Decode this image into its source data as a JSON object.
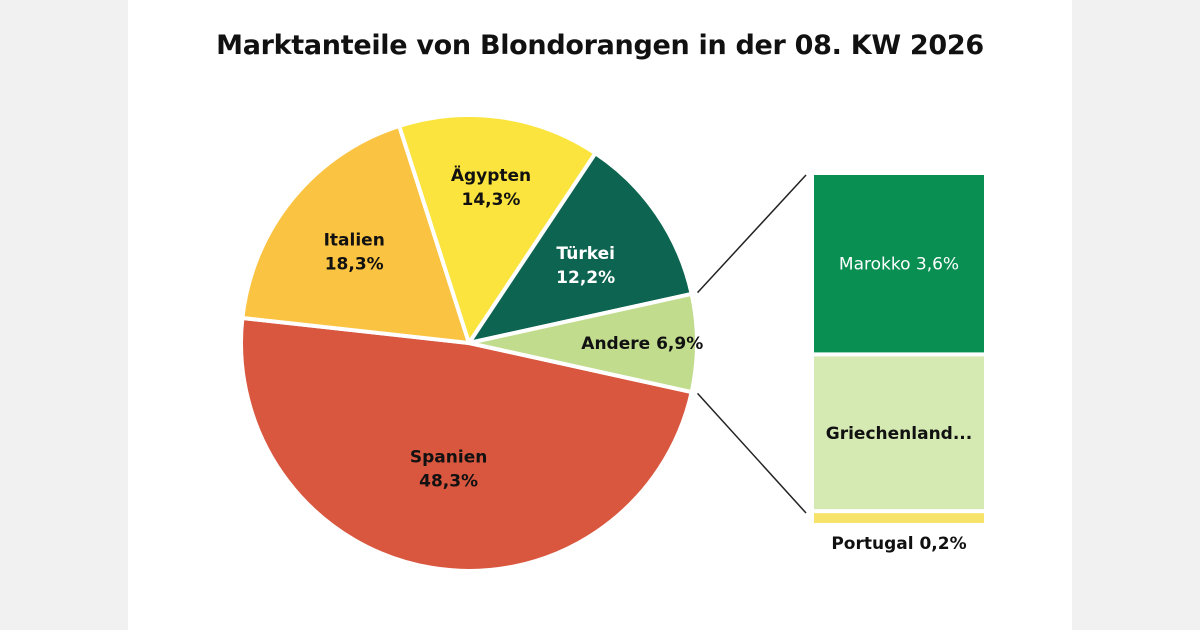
{
  "chart_data": {
    "type": "pie",
    "title": "Marktanteile von Blondorangen in der 08. KW 2026",
    "slices": [
      {
        "name": "Spanien",
        "value": 48.3,
        "value_label": "48,3%",
        "color": "#d9573f",
        "text_color": "#111111"
      },
      {
        "name": "Italien",
        "value": 18.3,
        "value_label": "18,3%",
        "color": "#fbc342",
        "text_color": "#111111"
      },
      {
        "name": "Ägypten",
        "value": 14.3,
        "value_label": "14,3%",
        "color": "#fbe43d",
        "text_color": "#111111"
      },
      {
        "name": "Türkei",
        "value": 12.2,
        "value_label": "12,2%",
        "color": "#0d6450",
        "text_color": "#ffffff"
      },
      {
        "name": "Andere",
        "value": 6.9,
        "value_label": "6,9%",
        "color": "#c2dc8e",
        "text_color": "#111111"
      }
    ],
    "breakdown": {
      "of": "Andere",
      "segments": [
        {
          "name": "Marokko",
          "value": 3.6,
          "value_label": "3,6%",
          "label": "Marokko 3,6%",
          "color": "#0a8f53",
          "text_color": "#ffffff"
        },
        {
          "name": "Griechenland",
          "value": 3.1,
          "label": "Griechenland...",
          "color": "#d5eab2",
          "text_color": "#111111"
        },
        {
          "name": "Portugal",
          "value": 0.2,
          "value_label": "0,2%",
          "label": "Portugal 0,2%",
          "color": "#f7e36a",
          "text_color": "#111111"
        }
      ]
    }
  }
}
